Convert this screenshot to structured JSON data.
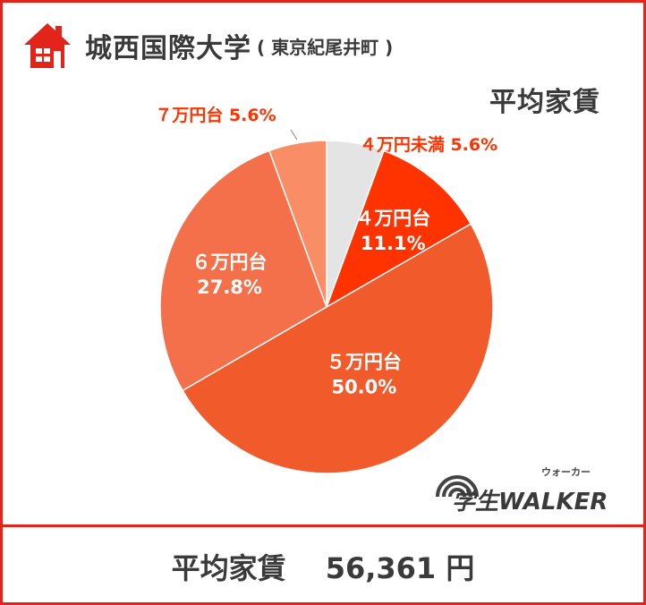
{
  "header": {
    "title": "城西国際大学",
    "subtitle": "( 東京紀尾井町 )",
    "icon": "house-icon"
  },
  "chart_heading": "平均家賃",
  "chart_data": {
    "type": "pie",
    "title": "平均家賃",
    "slices": [
      {
        "label": "４万円未満",
        "value": 5.6,
        "display": "5.6%",
        "color": "#e4e4e4"
      },
      {
        "label": "４万円台",
        "value": 11.1,
        "display": "11.1%",
        "color": "#ff3300"
      },
      {
        "label": "５万円台",
        "value": 50.0,
        "display": "50.0%",
        "color": "#f15a2b"
      },
      {
        "label": "６万円台",
        "value": 27.8,
        "display": "27.8%",
        "color": "#f4704a"
      },
      {
        "label": "７万円台",
        "value": 5.6,
        "display": "5.6%",
        "color": "#f98d66"
      }
    ]
  },
  "footer": {
    "label": "平均家賃",
    "value": "56,361 円"
  },
  "logo": {
    "text": "学生WALKER",
    "kana": "ウォーカー"
  }
}
